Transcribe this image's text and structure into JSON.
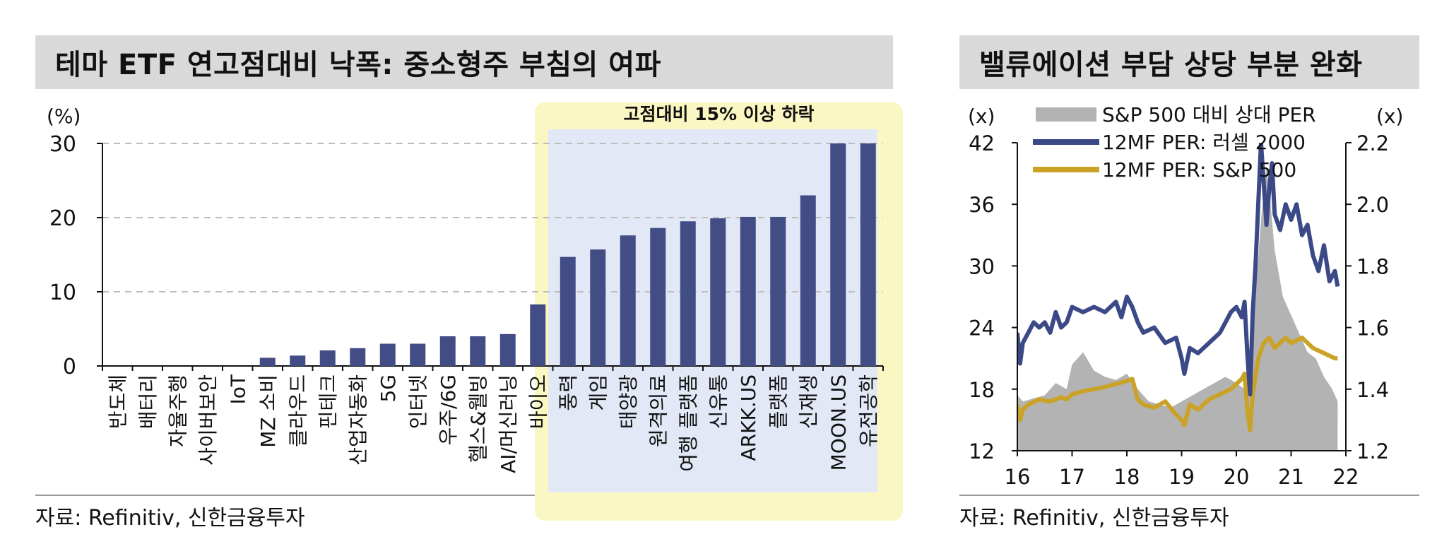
{
  "left_panel": {
    "title": "테마 ETF 연고점대비 낙폭: 중소형주 부침의 여파",
    "source": "자료: Refinitiv, 신한금융투자",
    "highlight_label": "고점대비 15% 이상 하락",
    "colors": {
      "bar": "#434d85",
      "highlight_outer": "#fbf7c2",
      "highlight_inner": "#e3e8f7",
      "grid": "#bdbdbd"
    }
  },
  "right_panel": {
    "title": "밸류에이션 부담 상당 부분 완화",
    "source": "자료: Refinitiv, 신한금융투자",
    "colors": {
      "area": "#b3b3b3",
      "russell": "#3c4987",
      "sp500": "#c9a227"
    }
  },
  "chart_data": [
    {
      "type": "bar",
      "ylabel": "(%)",
      "ylim": [
        0,
        30
      ],
      "yticks": [
        0,
        10,
        20,
        30
      ],
      "grid": true,
      "highlight_from": "풍력",
      "categories": [
        "반도체",
        "배터리",
        "자율주행",
        "사이버보안",
        "IoT",
        "MZ 소비",
        "클라우드",
        "핀테크",
        "산업자동화",
        "5G",
        "인터넷",
        "우주/6G",
        "헬스&웰빙",
        "AI/머신러닝",
        "바이오",
        "풍력",
        "게임",
        "태양광",
        "원격의료",
        "여행 플랫폼",
        "신유통",
        "ARKK.US",
        "플랫폼",
        "신재생",
        "MOON.US",
        "유전공학"
      ],
      "values": [
        0,
        0,
        0,
        0,
        0,
        1.1,
        1.4,
        2.1,
        2.4,
        3.0,
        3.0,
        4.0,
        4.0,
        4.3,
        8.3,
        14.7,
        15.7,
        17.6,
        18.6,
        19.5,
        19.9,
        20.1,
        20.1,
        23.0,
        30,
        30
      ]
    },
    {
      "type": "line",
      "ylabel_left": "(x)",
      "ylabel_right": "(x)",
      "ylim_left": [
        12,
        42
      ],
      "ylim_right": [
        1.2,
        2.2
      ],
      "yticks_left": [
        12,
        18,
        24,
        30,
        36,
        42
      ],
      "yticks_right": [
        "1.2",
        "1.4",
        "1.6",
        "1.8",
        "2.0",
        "2.2"
      ],
      "xlim": [
        2016,
        2022
      ],
      "xticks": [
        "16",
        "17",
        "18",
        "19",
        "20",
        "21",
        "22"
      ],
      "legend": "top",
      "series": [
        {
          "name": "S&P 500 대비 상대 PER",
          "kind": "area",
          "axis": "right",
          "x": [
            2016.0,
            2016.1,
            2016.3,
            2016.5,
            2016.7,
            2016.9,
            2017.0,
            2017.2,
            2017.4,
            2017.6,
            2017.8,
            2018.0,
            2018.2,
            2018.4,
            2018.6,
            2018.8,
            2019.0,
            2019.2,
            2019.4,
            2019.6,
            2019.8,
            2020.0,
            2020.15,
            2020.25,
            2020.35,
            2020.45,
            2020.55,
            2020.6,
            2020.7,
            2020.85,
            2021.0,
            2021.15,
            2021.3,
            2021.45,
            2021.6,
            2021.75,
            2021.85
          ],
          "y": [
            1.38,
            1.36,
            1.37,
            1.38,
            1.42,
            1.4,
            1.48,
            1.52,
            1.46,
            1.44,
            1.43,
            1.45,
            1.4,
            1.36,
            1.35,
            1.34,
            1.36,
            1.38,
            1.4,
            1.42,
            1.44,
            1.42,
            1.4,
            1.48,
            1.7,
            1.95,
            2.12,
            2.05,
            1.85,
            1.7,
            1.64,
            1.58,
            1.52,
            1.5,
            1.44,
            1.4,
            1.36
          ]
        },
        {
          "name": "12MF PER: 러셀 2000",
          "kind": "line",
          "axis": "left",
          "x": [
            2016.0,
            2016.05,
            2016.1,
            2016.2,
            2016.3,
            2016.4,
            2016.5,
            2016.6,
            2016.7,
            2016.8,
            2016.9,
            2017.0,
            2017.2,
            2017.4,
            2017.6,
            2017.8,
            2017.9,
            2018.0,
            2018.1,
            2018.2,
            2018.3,
            2018.5,
            2018.7,
            2018.9,
            2019.0,
            2019.05,
            2019.15,
            2019.3,
            2019.5,
            2019.7,
            2019.9,
            2020.0,
            2020.1,
            2020.15,
            2020.2,
            2020.25,
            2020.3,
            2020.35,
            2020.4,
            2020.45,
            2020.5,
            2020.55,
            2020.6,
            2020.65,
            2020.7,
            2020.8,
            2020.9,
            2021.0,
            2021.1,
            2021.2,
            2021.3,
            2021.4,
            2021.5,
            2021.6,
            2021.7,
            2021.8,
            2021.85
          ],
          "y": [
            23.5,
            20.5,
            22.5,
            23.5,
            24.5,
            24.0,
            24.5,
            23.5,
            25.5,
            24.0,
            24.5,
            26.0,
            25.5,
            26.0,
            25.5,
            26.5,
            25.0,
            27.0,
            26.0,
            24.5,
            23.5,
            24.0,
            22.5,
            23.0,
            21.0,
            19.5,
            22.0,
            21.5,
            22.5,
            23.5,
            25.5,
            26.0,
            25.0,
            26.5,
            21.5,
            17.5,
            25.5,
            30.0,
            36.0,
            42.0,
            38.0,
            34.0,
            37.5,
            40.0,
            35.0,
            33.5,
            36.0,
            34.5,
            36.0,
            33.0,
            34.0,
            31.0,
            29.5,
            32.0,
            28.5,
            29.5,
            28.0
          ]
        },
        {
          "name": "12MF PER: S&P 500",
          "kind": "line",
          "axis": "left",
          "x": [
            2016.0,
            2016.05,
            2016.1,
            2016.2,
            2016.4,
            2016.6,
            2016.8,
            2016.9,
            2017.0,
            2017.2,
            2017.4,
            2017.6,
            2017.8,
            2018.0,
            2018.1,
            2018.2,
            2018.3,
            2018.5,
            2018.7,
            2018.9,
            2019.0,
            2019.05,
            2019.15,
            2019.3,
            2019.5,
            2019.7,
            2019.9,
            2020.0,
            2020.1,
            2020.15,
            2020.2,
            2020.25,
            2020.3,
            2020.4,
            2020.5,
            2020.6,
            2020.7,
            2020.8,
            2020.9,
            2021.0,
            2021.2,
            2021.4,
            2021.6,
            2021.8,
            2021.85
          ],
          "y": [
            16.5,
            15.0,
            16.0,
            16.5,
            17.0,
            16.8,
            17.2,
            17.0,
            17.5,
            17.8,
            18.0,
            18.2,
            18.5,
            18.8,
            19.0,
            17.0,
            16.5,
            16.2,
            16.8,
            15.5,
            15.0,
            14.5,
            16.5,
            16.0,
            17.0,
            17.5,
            18.0,
            18.5,
            19.0,
            19.5,
            16.0,
            14.0,
            17.5,
            21.0,
            22.5,
            23.0,
            22.0,
            22.5,
            23.0,
            22.5,
            23.0,
            22.0,
            21.5,
            21.0,
            21.0
          ]
        }
      ]
    }
  ]
}
